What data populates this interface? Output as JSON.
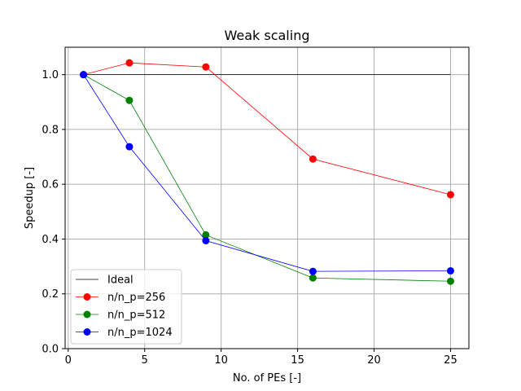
{
  "chart_data": {
    "type": "line",
    "title": "Weak scaling",
    "xlabel": "No. of PEs [-]",
    "ylabel": "Speedup [-]",
    "xlim": [
      -0.2,
      26.2
    ],
    "ylim": [
      0.0,
      1.1
    ],
    "xticks": [
      0,
      5,
      10,
      15,
      20,
      25
    ],
    "yticks": [
      0.0,
      0.2,
      0.4,
      0.6,
      0.8,
      1.0
    ],
    "xtick_labels": [
      "0",
      "5",
      "10",
      "15",
      "20",
      "25"
    ],
    "ytick_labels": [
      "0.0",
      "0.2",
      "0.4",
      "0.6",
      "0.8",
      "1.0"
    ],
    "grid": true,
    "legend_position": "lower-left",
    "series": [
      {
        "name": "Ideal",
        "color": "#000000",
        "marker": false,
        "x": [
          1,
          25
        ],
        "y": [
          1.0,
          1.0
        ]
      },
      {
        "name": "n/n_p=256",
        "color": "#ff0000",
        "marker": true,
        "x": [
          1,
          4,
          9,
          16,
          25
        ],
        "y": [
          1.0,
          1.043,
          1.028,
          0.692,
          0.562
        ]
      },
      {
        "name": "n/n_p=512",
        "color": "#008000",
        "marker": true,
        "x": [
          1,
          4,
          9,
          16,
          25
        ],
        "y": [
          1.0,
          0.906,
          0.415,
          0.258,
          0.246
        ]
      },
      {
        "name": "n/n_p=1024",
        "color": "#0000ff",
        "marker": true,
        "x": [
          1,
          4,
          9,
          16,
          25
        ],
        "y": [
          1.0,
          0.737,
          0.394,
          0.282,
          0.284
        ]
      }
    ]
  }
}
